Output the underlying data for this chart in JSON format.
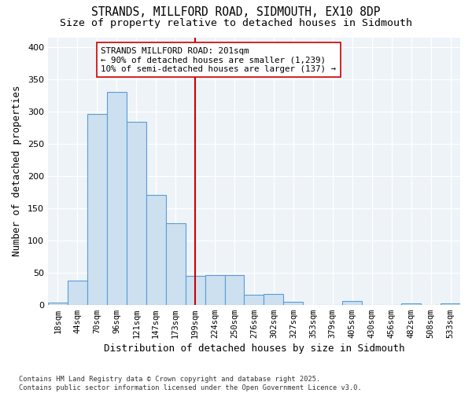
{
  "title": "STRANDS, MILLFORD ROAD, SIDMOUTH, EX10 8DP",
  "subtitle": "Size of property relative to detached houses in Sidmouth",
  "xlabel": "Distribution of detached houses by size in Sidmouth",
  "ylabel": "Number of detached properties",
  "categories": [
    "18sqm",
    "44sqm",
    "70sqm",
    "96sqm",
    "121sqm",
    "147sqm",
    "173sqm",
    "199sqm",
    "224sqm",
    "250sqm",
    "276sqm",
    "302sqm",
    "327sqm",
    "353sqm",
    "379sqm",
    "405sqm",
    "430sqm",
    "456sqm",
    "482sqm",
    "508sqm",
    "533sqm"
  ],
  "values": [
    3,
    38,
    296,
    330,
    284,
    171,
    126,
    45,
    46,
    46,
    15,
    17,
    5,
    0,
    0,
    6,
    0,
    0,
    2,
    0,
    2
  ],
  "bar_color": "#cce0f0",
  "bar_edge_color": "#5b9bd5",
  "vline_index": 7,
  "vline_color": "#cc0000",
  "annotation_text": "STRANDS MILLFORD ROAD: 201sqm\n← 90% of detached houses are smaller (1,239)\n10% of semi-detached houses are larger (137) →",
  "annotation_box_color": "#ffffff",
  "annotation_box_edge": "#cc0000",
  "footnote": "Contains HM Land Registry data © Crown copyright and database right 2025.\nContains public sector information licensed under the Open Government Licence v3.0.",
  "ylim": [
    0,
    415
  ],
  "yticks": [
    0,
    50,
    100,
    150,
    200,
    250,
    300,
    350,
    400
  ],
  "background_color": "#ffffff",
  "plot_bg_color": "#eef3f8",
  "title_fontsize": 10.5,
  "subtitle_fontsize": 9.5,
  "tick_fontsize": 7.5,
  "xlabel_fontsize": 9,
  "ylabel_fontsize": 9,
  "footnote_fontsize": 6.2
}
